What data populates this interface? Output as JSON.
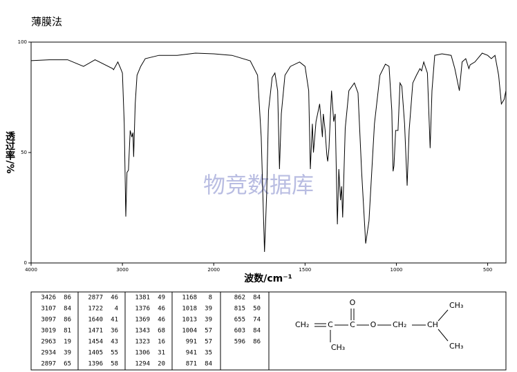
{
  "chart_data": {
    "type": "line",
    "title": "薄膜法",
    "xlabel": "波数/cm⁻¹",
    "ylabel": "透过率/%",
    "watermark": "物竞数据库",
    "xlim": [
      4000,
      400
    ],
    "xbreak": 2000,
    "xticks": [
      4000,
      3000,
      2000,
      1500,
      1000,
      500
    ],
    "ylim": [
      0,
      100
    ],
    "yticks": [
      0,
      50,
      100
    ],
    "x": [
      4000,
      3800,
      3600,
      3426,
      3300,
      3107,
      3097,
      3050,
      3019,
      3000,
      2980,
      2963,
      2950,
      2934,
      2915,
      2897,
      2885,
      2877,
      2860,
      2840,
      2800,
      2750,
      2600,
      2400,
      2200,
      2000,
      1900,
      1800,
      1760,
      1740,
      1722,
      1710,
      1700,
      1680,
      1665,
      1650,
      1640,
      1630,
      1610,
      1580,
      1530,
      1500,
      1480,
      1471,
      1460,
      1454,
      1440,
      1420,
      1405,
      1400,
      1390,
      1381,
      1376,
      1369,
      1355,
      1343,
      1335,
      1323,
      1315,
      1306,
      1300,
      1294,
      1280,
      1260,
      1230,
      1210,
      1190,
      1168,
      1150,
      1120,
      1090,
      1060,
      1040,
      1025,
      1018,
      1013,
      1004,
      991,
      980,
      970,
      955,
      941,
      930,
      910,
      890,
      871,
      862,
      850,
      830,
      815,
      805,
      790,
      750,
      700,
      680,
      655,
      640,
      620,
      603,
      596,
      570,
      530,
      500,
      480,
      460,
      440,
      425,
      410,
      400
    ],
    "series": [
      {
        "color": "#000000",
        "values": [
          91.6,
          92,
          92,
          89,
          92,
          88,
          87.5,
          91,
          88,
          86,
          63,
          21,
          41,
          42,
          60,
          57,
          59,
          48,
          72,
          85,
          89,
          92.5,
          94,
          94,
          95,
          94.7,
          94,
          91.5,
          85,
          57,
          5,
          31.5,
          69,
          84,
          86,
          78,
          42.5,
          67.5,
          85,
          89,
          91,
          89,
          78,
          42.5,
          63,
          50,
          64,
          72,
          57,
          67.5,
          60,
          49,
          46,
          52,
          78,
          64,
          67.5,
          17.5,
          42.5,
          28.4,
          34.7,
          20.6,
          61,
          78,
          81.5,
          77,
          41,
          8.8,
          19,
          63,
          85,
          90,
          89,
          69,
          41.5,
          44,
          60,
          60,
          81.5,
          80,
          63,
          35,
          60,
          81.5,
          85,
          88,
          87,
          91,
          86,
          52,
          78,
          94,
          94.7,
          94,
          88,
          78,
          91,
          92.5,
          88,
          89.7,
          91,
          95,
          94,
          92.5,
          94,
          85,
          72,
          74,
          78
        ]
      }
    ]
  },
  "peak_table": [
    [
      [
        3426,
        86
      ],
      [
        3107,
        84
      ],
      [
        3097,
        86
      ],
      [
        3019,
        81
      ],
      [
        2963,
        19
      ],
      [
        2934,
        39
      ],
      [
        2897,
        65
      ]
    ],
    [
      [
        2877,
        46
      ],
      [
        1722,
        4
      ],
      [
        1640,
        41
      ],
      [
        1471,
        36
      ],
      [
        1454,
        43
      ],
      [
        1405,
        55
      ],
      [
        1396,
        58
      ]
    ],
    [
      [
        1381,
        49
      ],
      [
        1376,
        46
      ],
      [
        1369,
        46
      ],
      [
        1343,
        68
      ],
      [
        1323,
        16
      ],
      [
        1306,
        31
      ],
      [
        1294,
        20
      ]
    ],
    [
      [
        1168,
        8
      ],
      [
        1018,
        39
      ],
      [
        1013,
        39
      ],
      [
        1004,
        57
      ],
      [
        991,
        57
      ],
      [
        941,
        35
      ],
      [
        871,
        84
      ]
    ],
    [
      [
        862,
        84
      ],
      [
        815,
        50
      ],
      [
        655,
        74
      ],
      [
        603,
        84
      ],
      [
        596,
        86
      ]
    ]
  ],
  "structure": {
    "atoms": [
      "CH₂",
      "C",
      "C",
      "O",
      "O",
      "CH₂",
      "CH",
      "CH₃",
      "CH₃",
      "CH₃"
    ]
  }
}
